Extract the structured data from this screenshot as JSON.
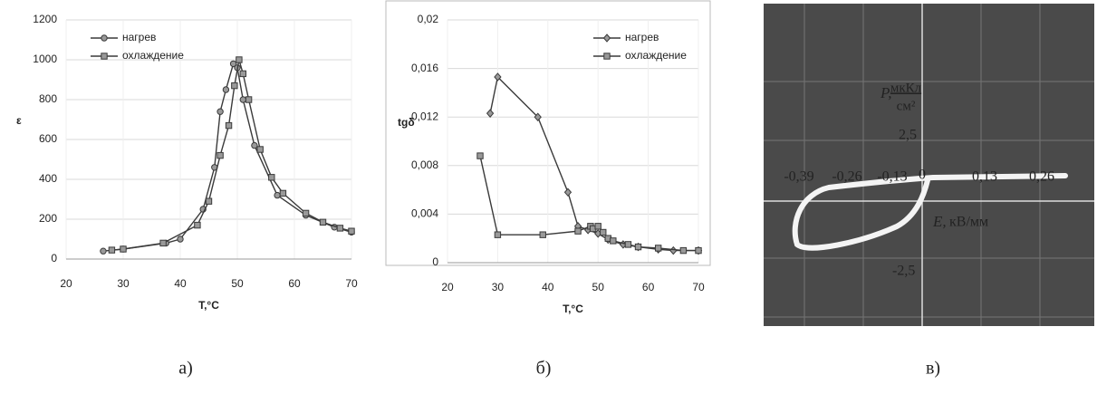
{
  "chart_data": [
    {
      "type": "line",
      "y_label": "ε",
      "x_label": "T,°C",
      "xlim": [
        20,
        70
      ],
      "xticks": [
        20,
        30,
        40,
        50,
        60,
        70
      ],
      "ylim": [
        0,
        1200
      ],
      "yticks": [
        0,
        200,
        400,
        600,
        800,
        1000,
        1200
      ],
      "grid": true,
      "legend": "upper left",
      "series": [
        {
          "name": "нагрев",
          "color": "#3a3a3a",
          "marker": "circle",
          "x": [
            26.5,
            30,
            37.5,
            40,
            44,
            46,
            47,
            48,
            49.3,
            50,
            51,
            53,
            57,
            62,
            67,
            70
          ],
          "values": [
            40,
            50,
            80,
            100,
            250,
            460,
            740,
            850,
            980,
            960,
            800,
            570,
            320,
            220,
            160,
            135
          ]
        },
        {
          "name": "охлаждение",
          "color": "#3a3a3a",
          "marker": "square",
          "x": [
            28,
            30,
            37,
            43,
            45,
            47,
            48.5,
            49.5,
            50.3,
            51,
            52,
            54,
            56,
            58,
            62,
            65,
            68,
            70
          ],
          "values": [
            45,
            50,
            80,
            170,
            290,
            520,
            670,
            870,
            1000,
            930,
            800,
            550,
            410,
            330,
            230,
            185,
            155,
            140
          ]
        }
      ]
    },
    {
      "type": "line",
      "y_label": "tgδ",
      "x_label": "T,°C",
      "xlim": [
        20,
        70
      ],
      "xticks": [
        20,
        30,
        40,
        50,
        60,
        70
      ],
      "ylim": [
        0,
        0.02
      ],
      "yticks": [
        0,
        {
          "value": 0.004,
          "label": "0,004"
        },
        {
          "value": 0.008,
          "label": "0,008"
        },
        {
          "value": 0.012,
          "label": "0,012"
        },
        {
          "value": 0.016,
          "label": "0,016"
        },
        {
          "value": 0.02,
          "label": "0,02"
        }
      ],
      "grid": true,
      "legend": "upper right",
      "series": [
        {
          "name": "нагрев",
          "color": "#3a3a3a",
          "marker": "diamond",
          "x": [
            28.5,
            30,
            38,
            44,
            46,
            48,
            50,
            52,
            55,
            58,
            62,
            65,
            70
          ],
          "values": [
            0.0123,
            0.0153,
            0.012,
            0.0058,
            0.003,
            0.0027,
            0.0024,
            0.0019,
            0.0015,
            0.0013,
            0.0011,
            0.001,
            0.001
          ]
        },
        {
          "name": "охлаждение",
          "color": "#3a3a3a",
          "marker": "square",
          "x": [
            26.5,
            30,
            39,
            46,
            48.5,
            49,
            50,
            51,
            52,
            53,
            56,
            58,
            62,
            67,
            70
          ],
          "values": [
            0.0088,
            0.0023,
            0.0023,
            0.0026,
            0.003,
            0.0028,
            0.003,
            0.0025,
            0.002,
            0.0018,
            0.0015,
            0.0013,
            0.0012,
            0.001,
            0.001
          ]
        }
      ]
    }
  ],
  "oscillogram": {
    "y_label": "P,",
    "y_unit_num": "мкКл",
    "y_unit_den": "см²",
    "x_label": "E,",
    "x_unit": "кВ/мм",
    "y_ticks": [
      "2,5",
      "-2,5"
    ],
    "x_ticks": [
      "-0,39",
      "-0,26",
      "-0,13",
      "0",
      "0,13",
      "0,26"
    ]
  },
  "captions": [
    "а)",
    "б)",
    "в)"
  ]
}
